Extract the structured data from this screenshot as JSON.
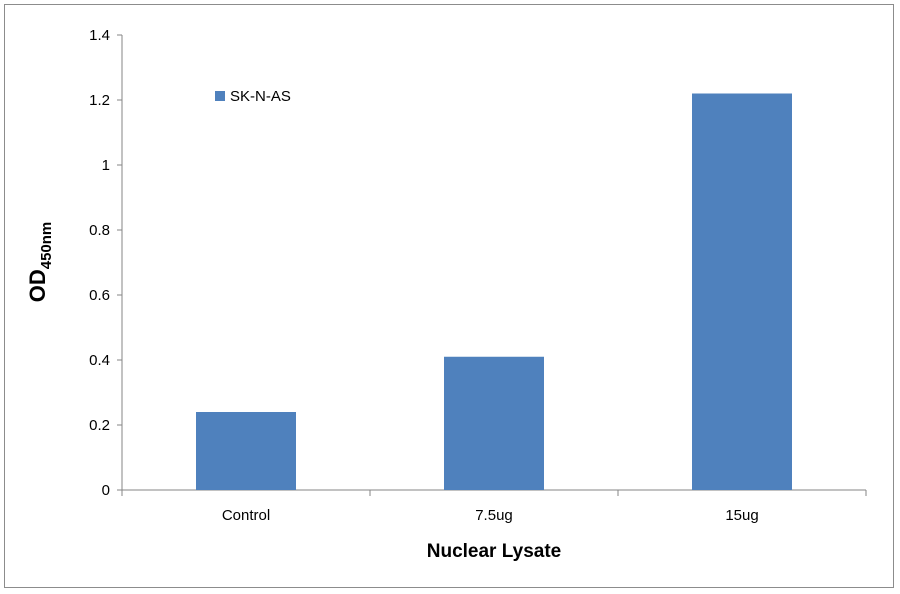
{
  "chart_data": {
    "type": "bar",
    "title": "",
    "categories": [
      "Control",
      "7.5ug",
      "15ug"
    ],
    "series": [
      {
        "name": "SK-N-AS",
        "values": [
          0.24,
          0.41,
          1.22
        ],
        "color": "#4f81bd"
      }
    ],
    "xlabel": "Nuclear Lysate",
    "ylabel": "OD",
    "ylabel_subscript": "450nm",
    "ylim": [
      0,
      1.4
    ],
    "yticks": [
      "0",
      "0.2",
      "0.4",
      "0.6",
      "0.8",
      "1",
      "1.2",
      "1.4"
    ],
    "grid": false,
    "legend_position": "top-left"
  }
}
